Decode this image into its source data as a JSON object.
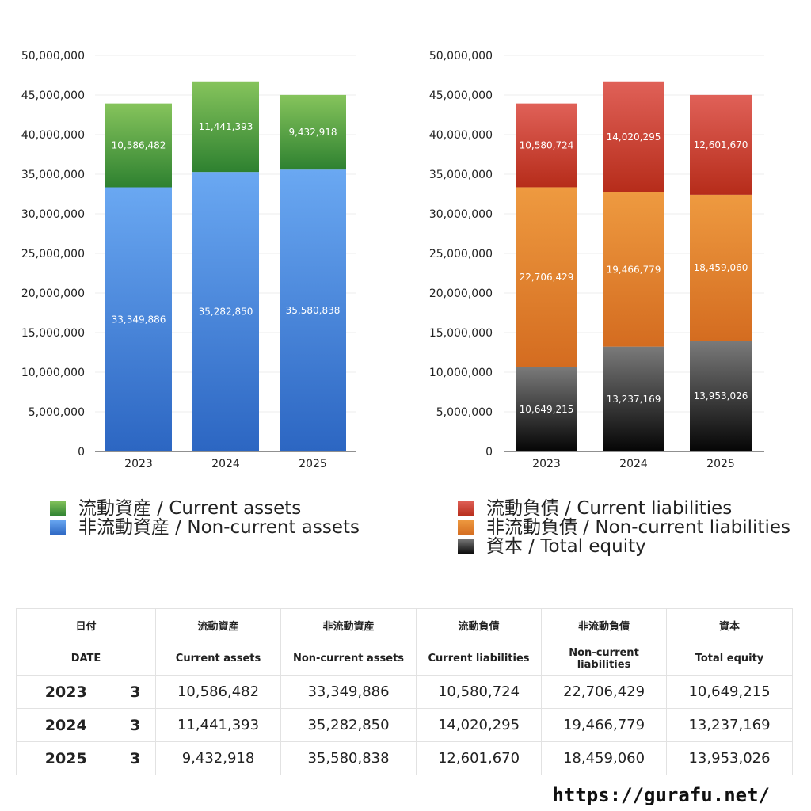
{
  "chart_data": [
    {
      "type": "bar",
      "stacked": true,
      "categories": [
        "2023",
        "2024",
        "2025"
      ],
      "ylim": [
        0,
        50000000
      ],
      "yticks": [
        0,
        5000000,
        10000000,
        15000000,
        20000000,
        25000000,
        30000000,
        35000000,
        40000000,
        45000000,
        50000000
      ],
      "ytick_labels": [
        "0",
        "5,000,000",
        "10,000,000",
        "15,000,000",
        "20,000,000",
        "25,000,000",
        "30,000,000",
        "35,000,000",
        "40,000,000",
        "45,000,000",
        "50,000,000"
      ],
      "grid": true,
      "legend_position": "bottom",
      "series": [
        {
          "name": "非流動資産 / Non-current assets",
          "values": [
            33349886,
            35282850,
            35580838
          ],
          "labels": [
            "33,349,886",
            "35,282,850",
            "35,580,838"
          ],
          "color_top": "#6aa8f2",
          "color_bottom": "#2c66c2"
        },
        {
          "name": "流動資産 / Current assets",
          "values": [
            10586482,
            11441393,
            9432918
          ],
          "labels": [
            "10,586,482",
            "11,441,393",
            "9,432,918"
          ],
          "color_top": "#86c45c",
          "color_bottom": "#2e8130"
        }
      ]
    },
    {
      "type": "bar",
      "stacked": true,
      "categories": [
        "2023",
        "2024",
        "2025"
      ],
      "ylim": [
        0,
        50000000
      ],
      "yticks": [
        0,
        5000000,
        10000000,
        15000000,
        20000000,
        25000000,
        30000000,
        35000000,
        40000000,
        45000000,
        50000000
      ],
      "ytick_labels": [
        "0",
        "5,000,000",
        "10,000,000",
        "15,000,000",
        "20,000,000",
        "25,000,000",
        "30,000,000",
        "35,000,000",
        "40,000,000",
        "45,000,000",
        "50,000,000"
      ],
      "grid": true,
      "legend_position": "bottom",
      "series": [
        {
          "name": "資本 / Total equity",
          "values": [
            10649215,
            13237169,
            13953026
          ],
          "labels": [
            "10,649,215",
            "13,237,169",
            "13,953,026"
          ],
          "color_top": "#7a7a7a",
          "color_bottom": "#050505"
        },
        {
          "name": "非流動負債 / Non-current liabilities",
          "values": [
            22706429,
            19466779,
            18459060
          ],
          "labels": [
            "22,706,429",
            "19,466,779",
            "18,459,060"
          ],
          "color_top": "#ee9a40",
          "color_bottom": "#d46c20"
        },
        {
          "name": "流動負債 / Current liabilities",
          "values": [
            10580724,
            14020295,
            12601670
          ],
          "labels": [
            "10,580,724",
            "14,020,295",
            "12,601,670"
          ],
          "color_top": "#e06158",
          "color_bottom": "#b62c1a"
        }
      ]
    }
  ],
  "legends": {
    "left": [
      {
        "label": "流動資産 / Current assets",
        "color": "#4ea33f"
      },
      {
        "label": "非流動資産 / Non-current assets",
        "color": "#3f80dc"
      }
    ],
    "right": [
      {
        "label": "流動負債 / Current liabilities",
        "color": "#d0473a"
      },
      {
        "label": "非流動負債 / Non-current liabilities",
        "color": "#e5832e"
      },
      {
        "label": "資本 / Total equity",
        "color": "#2a2a2a"
      }
    ]
  },
  "table": {
    "header_jp": {
      "date": "日付",
      "ca": "流動資産",
      "nca": "非流動資産",
      "cl": "流動負債",
      "ncl": "非流動負債",
      "eq": "資本"
    },
    "header_en": {
      "date": "DATE",
      "ca": "Current assets",
      "nca": "Non-current assets",
      "cl": "Current liabilities",
      "ncl": "Non-current liabilities",
      "eq": "Total equity"
    },
    "rows": [
      {
        "year": "2023",
        "month": "3",
        "ca": "10,586,482",
        "nca": "33,349,886",
        "cl": "10,580,724",
        "ncl": "22,706,429",
        "eq": "10,649,215"
      },
      {
        "year": "2024",
        "month": "3",
        "ca": "11,441,393",
        "nca": "35,282,850",
        "cl": "14,020,295",
        "ncl": "19,466,779",
        "eq": "13,237,169"
      },
      {
        "year": "2025",
        "month": "3",
        "ca": "9,432,918",
        "nca": "35,580,838",
        "cl": "12,601,670",
        "ncl": "18,459,060",
        "eq": "13,953,026"
      }
    ]
  },
  "watermark": "https://gurafu.net/"
}
